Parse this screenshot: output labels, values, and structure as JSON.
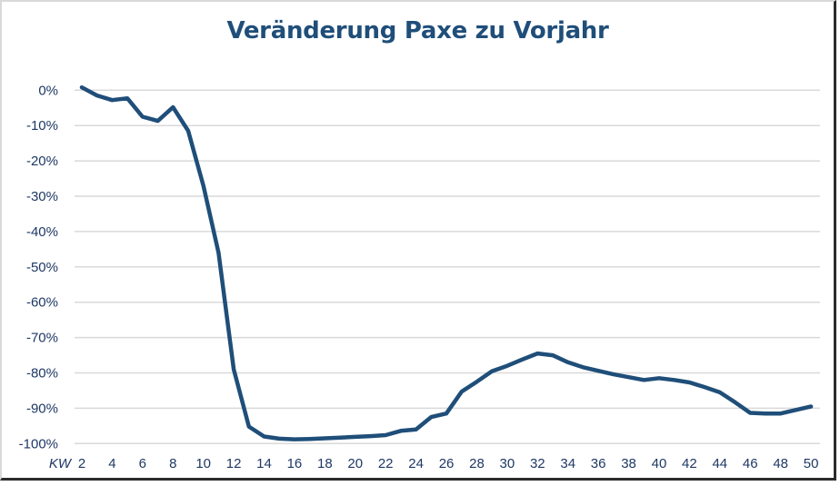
{
  "chart_data": {
    "type": "line",
    "title": "Veränderung Paxe zu Vorjahr",
    "xlabel": "KW",
    "ylabel": "",
    "ylim": [
      -100,
      0
    ],
    "xlim": [
      2,
      50
    ],
    "grid": true,
    "legend": null,
    "y_ticks": [
      "0%",
      "-10%",
      "-20%",
      "-30%",
      "-40%",
      "-50%",
      "-60%",
      "-70%",
      "-80%",
      "-90%",
      "-100%"
    ],
    "x_ticks": [
      "2",
      "4",
      "6",
      "8",
      "10",
      "12",
      "14",
      "16",
      "18",
      "20",
      "22",
      "24",
      "26",
      "28",
      "30",
      "32",
      "34",
      "36",
      "38",
      "40",
      "42",
      "44",
      "46",
      "48",
      "50"
    ],
    "x": [
      2,
      3,
      4,
      5,
      6,
      7,
      8,
      9,
      10,
      11,
      12,
      13,
      14,
      15,
      16,
      17,
      18,
      19,
      20,
      21,
      22,
      23,
      24,
      25,
      26,
      27,
      28,
      29,
      30,
      31,
      32,
      33,
      34,
      35,
      36,
      37,
      38,
      39,
      40,
      41,
      42,
      43,
      44,
      45,
      46,
      47,
      48,
      49,
      50
    ],
    "series": [
      {
        "name": "Veränderung Paxe zu Vorjahr",
        "color": "#1f4e79",
        "values": [
          0.8,
          -1.5,
          -2.8,
          -2.3,
          -7.5,
          -8.7,
          -4.8,
          -11.5,
          -27,
          -46,
          -79,
          -95.2,
          -98.0,
          -98.6,
          -98.8,
          -98.7,
          -98.5,
          -98.3,
          -98.1,
          -97.9,
          -97.6,
          -96.4,
          -96.0,
          -92.5,
          -91.5,
          -85.3,
          -82.5,
          -79.5,
          -78.0,
          -76.2,
          -74.5,
          -75.0,
          -77.0,
          -78.4,
          -79.4,
          -80.4,
          -81.2,
          -82.0,
          -81.5,
          -82.0,
          -82.7,
          -84.0,
          -85.5,
          -88.3,
          -91.3,
          -91.5,
          -91.5,
          -90.5,
          -89.5
        ]
      }
    ]
  },
  "colors": {
    "line": "#1f4e79",
    "title": "#1f4e79",
    "axis_text": "#1f3864",
    "gridline": "#d9d9d9"
  }
}
